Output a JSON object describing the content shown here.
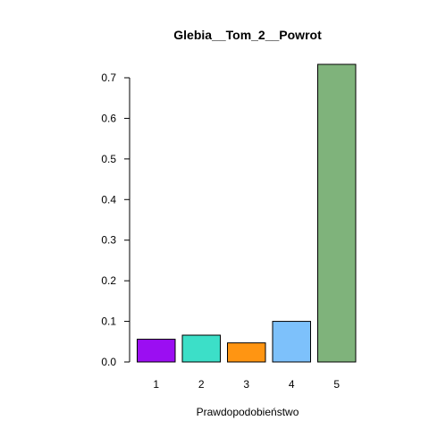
{
  "chart_data": {
    "type": "bar",
    "title": "Glebia__Tom_2__Powrot",
    "xlabel": "Prawdopodobieństwo",
    "ylabel": "",
    "categories": [
      "1",
      "2",
      "3",
      "4",
      "5"
    ],
    "values": [
      0.056,
      0.066,
      0.047,
      0.1,
      0.733
    ],
    "colors": [
      "#9B0EF2",
      "#3CDFC8",
      "#FF9512",
      "#7DC1FB",
      "#7FB37B"
    ],
    "ylim": [
      0,
      0.733
    ],
    "yticks": [
      0.0,
      0.1,
      0.2,
      0.3,
      0.4,
      0.5,
      0.6,
      0.7
    ],
    "ytick_labels": [
      "0.0",
      "0.1",
      "0.2",
      "0.3",
      "0.4",
      "0.5",
      "0.6",
      "0.7"
    ],
    "grid": false,
    "legend": "none"
  }
}
